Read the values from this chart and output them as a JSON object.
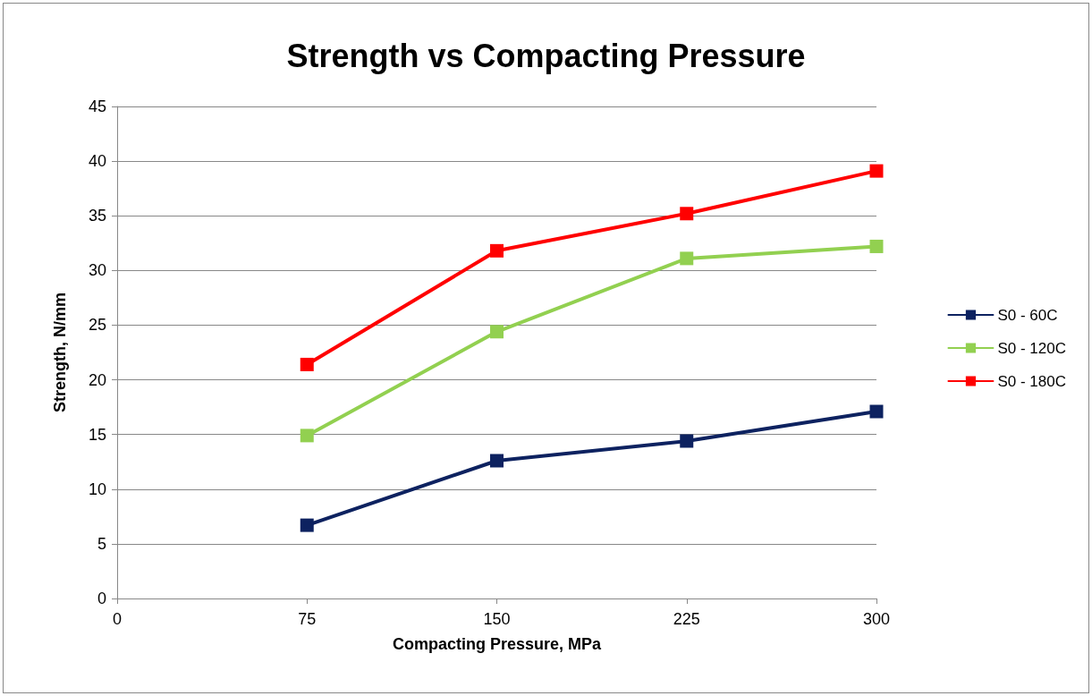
{
  "chart_data": {
    "type": "line",
    "title": "Strength vs Compacting Pressure",
    "xlabel": "Compacting Pressure, MPa",
    "ylabel": "Strength, N/mm",
    "x": [
      75,
      150,
      225,
      300
    ],
    "series": [
      {
        "name": "S0 - 60C",
        "color": "#0d2260",
        "values": [
          6.7,
          12.6,
          14.4,
          17.1
        ]
      },
      {
        "name": "S0 - 120C",
        "color": "#92d050",
        "values": [
          14.9,
          24.4,
          31.1,
          32.2
        ]
      },
      {
        "name": "S0 - 180C",
        "color": "#ff0000",
        "values": [
          21.4,
          31.8,
          35.2,
          39.1
        ]
      }
    ],
    "xlim": [
      0,
      300
    ],
    "xticks": [
      0,
      75,
      150,
      225,
      300
    ],
    "ylim": [
      0,
      45
    ],
    "yticks": [
      0,
      5,
      10,
      15,
      20,
      25,
      30,
      35,
      40,
      45
    ],
    "grid": "y",
    "legend": "right",
    "marker": "square",
    "line_style": "solid"
  }
}
